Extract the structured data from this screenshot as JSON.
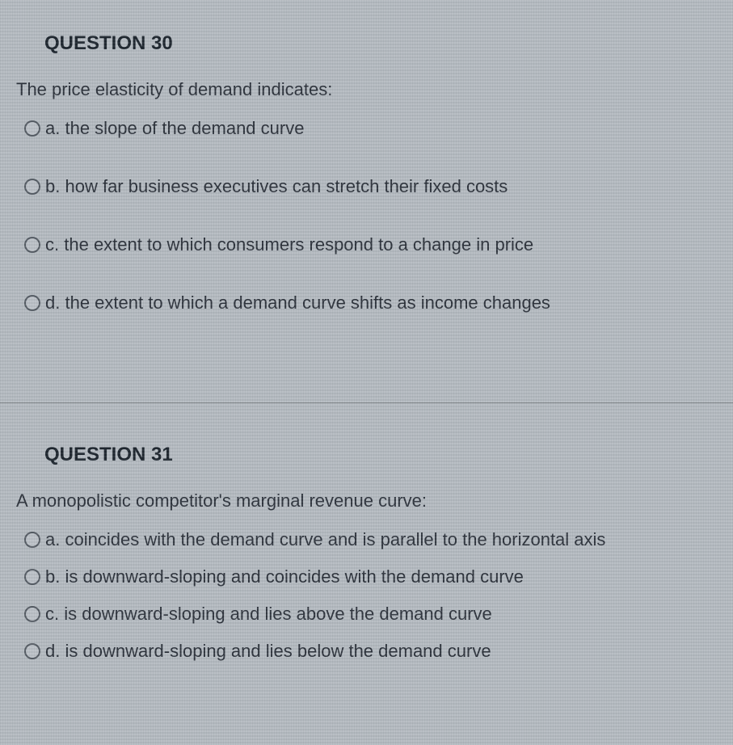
{
  "questions": [
    {
      "title": "QUESTION 30",
      "prompt": "The price elasticity of demand indicates:",
      "options": [
        {
          "letter": "a.",
          "text": "the slope of the demand curve"
        },
        {
          "letter": "b.",
          "text": "how far business executives can stretch their fixed costs"
        },
        {
          "letter": "c.",
          "text": "the extent to which consumers respond to a change in price"
        },
        {
          "letter": "d.",
          "text": "the extent to which a demand curve shifts as income changes"
        }
      ]
    },
    {
      "title": "QUESTION 31",
      "prompt": "A monopolistic competitor's marginal revenue curve:",
      "options": [
        {
          "letter": "a.",
          "text": "coincides with the demand curve and is parallel to the horizontal axis"
        },
        {
          "letter": "b.",
          "text": "is downward-sloping and coincides with the demand curve"
        },
        {
          "letter": "c.",
          "text": "is downward-sloping and lies above the demand curve"
        },
        {
          "letter": "d.",
          "text": "is downward-sloping and lies below the demand curve"
        }
      ]
    }
  ]
}
